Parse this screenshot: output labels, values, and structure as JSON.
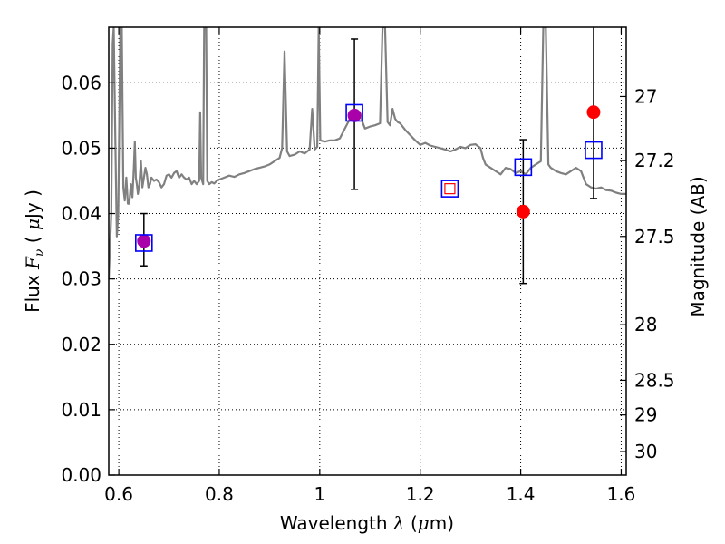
{
  "chart_data": {
    "type": "scatter",
    "title": "",
    "xlabel": {
      "prefix": "Wavelength",
      "symbol": "λ",
      "unit_open": "(",
      "unit_mu": "μ",
      "unit_rest": "m)"
    },
    "ylabel": {
      "prefix": "Flux",
      "symbol": "F",
      "subscript": "ν",
      "unit_open": "(",
      "unit_mu": "μ",
      "unit_rest": "Jy )"
    },
    "y2label": "Magnitude (AB)",
    "xlim": [
      0.58,
      1.61
    ],
    "ylim": [
      0.0,
      0.0685
    ],
    "grid": true,
    "x_ticks": [
      {
        "value": 0.6,
        "label": "0.6"
      },
      {
        "value": 0.8,
        "label": "0.8"
      },
      {
        "value": 1.0,
        "label": "1"
      },
      {
        "value": 1.2,
        "label": "1.2"
      },
      {
        "value": 1.4,
        "label": "1.4"
      },
      {
        "value": 1.6,
        "label": "1.6"
      }
    ],
    "y_ticks": [
      {
        "value": 0.0,
        "label": "0.00"
      },
      {
        "value": 0.01,
        "label": "0.01"
      },
      {
        "value": 0.02,
        "label": "0.02"
      },
      {
        "value": 0.03,
        "label": "0.03"
      },
      {
        "value": 0.04,
        "label": "0.04"
      },
      {
        "value": 0.05,
        "label": "0.05"
      },
      {
        "value": 0.06,
        "label": "0.06"
      }
    ],
    "y2_ticks": [
      {
        "flux": 0.0579,
        "label": "27"
      },
      {
        "flux": 0.0481,
        "label": "27.2"
      },
      {
        "flux": 0.0365,
        "label": "27.5"
      },
      {
        "flux": 0.023,
        "label": "28"
      },
      {
        "flux": 0.0145,
        "label": "28.5"
      },
      {
        "flux": 0.0092,
        "label": "29"
      },
      {
        "flux": 0.0036,
        "label": "30"
      }
    ],
    "colors": {
      "model": "#808080",
      "observed": "#ff0000",
      "model_band": "#0000ff",
      "overlap": "#aa00aa",
      "errorbar": "#000000",
      "grid": "#000000"
    },
    "series": [
      {
        "kind": "line",
        "points": [
          [
            0.58,
            0.03
          ],
          [
            0.585,
            0.04
          ],
          [
            0.588,
            0.066
          ],
          [
            0.59,
            0.0685
          ],
          [
            0.593,
            0.052
          ],
          [
            0.596,
            0.0365
          ],
          [
            0.599,
            0.04
          ],
          [
            0.603,
            0.0685
          ],
          [
            0.606,
            0.0685
          ],
          [
            0.609,
            0.044
          ],
          [
            0.612,
            0.042
          ],
          [
            0.615,
            0.0455
          ],
          [
            0.618,
            0.0415
          ],
          [
            0.621,
            0.0415
          ],
          [
            0.624,
            0.0445
          ],
          [
            0.627,
            0.0425
          ],
          [
            0.63,
            0.047
          ],
          [
            0.632,
            0.051
          ],
          [
            0.634,
            0.0455
          ],
          [
            0.636,
            0.0445
          ],
          [
            0.638,
            0.043
          ],
          [
            0.641,
            0.0445
          ],
          [
            0.644,
            0.048
          ],
          [
            0.647,
            0.044
          ],
          [
            0.65,
            0.0455
          ],
          [
            0.653,
            0.047
          ],
          [
            0.656,
            0.046
          ],
          [
            0.659,
            0.044
          ],
          [
            0.662,
            0.0445
          ],
          [
            0.665,
            0.0455
          ],
          [
            0.67,
            0.045
          ],
          [
            0.675,
            0.0452
          ],
          [
            0.68,
            0.0448
          ],
          [
            0.685,
            0.044
          ],
          [
            0.69,
            0.0445
          ],
          [
            0.695,
            0.0458
          ],
          [
            0.7,
            0.046
          ],
          [
            0.705,
            0.0455
          ],
          [
            0.71,
            0.0462
          ],
          [
            0.715,
            0.0465
          ],
          [
            0.72,
            0.0455
          ],
          [
            0.725,
            0.046
          ],
          [
            0.73,
            0.0455
          ],
          [
            0.735,
            0.0452
          ],
          [
            0.74,
            0.0455
          ],
          [
            0.745,
            0.0445
          ],
          [
            0.75,
            0.045
          ],
          [
            0.755,
            0.0445
          ],
          [
            0.76,
            0.045
          ],
          [
            0.762,
            0.0555
          ],
          [
            0.764,
            0.0455
          ],
          [
            0.768,
            0.0445
          ],
          [
            0.77,
            0.0685
          ],
          [
            0.772,
            0.0685
          ],
          [
            0.774,
            0.0685
          ],
          [
            0.776,
            0.045
          ],
          [
            0.78,
            0.0445
          ],
          [
            0.785,
            0.0448
          ],
          [
            0.79,
            0.0446
          ],
          [
            0.795,
            0.045
          ],
          [
            0.8,
            0.0452
          ],
          [
            0.81,
            0.0455
          ],
          [
            0.82,
            0.0458
          ],
          [
            0.83,
            0.0456
          ],
          [
            0.84,
            0.046
          ],
          [
            0.85,
            0.0462
          ],
          [
            0.86,
            0.0465
          ],
          [
            0.87,
            0.0468
          ],
          [
            0.88,
            0.047
          ],
          [
            0.89,
            0.0472
          ],
          [
            0.9,
            0.0475
          ],
          [
            0.91,
            0.048
          ],
          [
            0.92,
            0.0485
          ],
          [
            0.925,
            0.05
          ],
          [
            0.93,
            0.0648
          ],
          [
            0.935,
            0.0495
          ],
          [
            0.94,
            0.0488
          ],
          [
            0.95,
            0.049
          ],
          [
            0.96,
            0.0495
          ],
          [
            0.97,
            0.0492
          ],
          [
            0.98,
            0.0498
          ],
          [
            0.985,
            0.056
          ],
          [
            0.99,
            0.0498
          ],
          [
            0.995,
            0.0502
          ],
          [
            0.998,
            0.0685
          ],
          [
            1.001,
            0.0512
          ],
          [
            1.01,
            0.051
          ],
          [
            1.02,
            0.0512
          ],
          [
            1.03,
            0.0512
          ],
          [
            1.04,
            0.0515
          ],
          [
            1.05,
            0.053
          ],
          [
            1.06,
            0.0545
          ],
          [
            1.07,
            0.055
          ],
          [
            1.08,
            0.0555
          ],
          [
            1.085,
            0.054
          ],
          [
            1.09,
            0.053
          ],
          [
            1.1,
            0.0533
          ],
          [
            1.11,
            0.0535
          ],
          [
            1.12,
            0.0538
          ],
          [
            1.125,
            0.0685
          ],
          [
            1.13,
            0.0685
          ],
          [
            1.135,
            0.054
          ],
          [
            1.14,
            0.0535
          ],
          [
            1.145,
            0.056
          ],
          [
            1.15,
            0.0545
          ],
          [
            1.155,
            0.054
          ],
          [
            1.16,
            0.0538
          ],
          [
            1.17,
            0.0528
          ],
          [
            1.18,
            0.052
          ],
          [
            1.19,
            0.0512
          ],
          [
            1.2,
            0.0505
          ],
          [
            1.21,
            0.0508
          ],
          [
            1.22,
            0.0504
          ],
          [
            1.23,
            0.0502
          ],
          [
            1.24,
            0.05
          ],
          [
            1.25,
            0.0498
          ],
          [
            1.26,
            0.0495
          ],
          [
            1.27,
            0.0498
          ],
          [
            1.28,
            0.0502
          ],
          [
            1.29,
            0.05
          ],
          [
            1.3,
            0.0505
          ],
          [
            1.31,
            0.0506
          ],
          [
            1.32,
            0.05
          ],
          [
            1.325,
            0.0485
          ],
          [
            1.33,
            0.0475
          ],
          [
            1.34,
            0.047
          ],
          [
            1.35,
            0.0465
          ],
          [
            1.36,
            0.046
          ],
          [
            1.37,
            0.047
          ],
          [
            1.38,
            0.0468
          ],
          [
            1.39,
            0.0462
          ],
          [
            1.4,
            0.0465
          ],
          [
            1.41,
            0.046
          ],
          [
            1.42,
            0.047
          ],
          [
            1.43,
            0.0475
          ],
          [
            1.44,
            0.048
          ],
          [
            1.445,
            0.0685
          ],
          [
            1.45,
            0.0685
          ],
          [
            1.455,
            0.0475
          ],
          [
            1.46,
            0.047
          ],
          [
            1.47,
            0.0465
          ],
          [
            1.48,
            0.0462
          ],
          [
            1.49,
            0.046
          ],
          [
            1.5,
            0.0465
          ],
          [
            1.51,
            0.047
          ],
          [
            1.52,
            0.0465
          ],
          [
            1.53,
            0.0445
          ],
          [
            1.54,
            0.044
          ],
          [
            1.55,
            0.0438
          ],
          [
            1.56,
            0.044
          ],
          [
            1.57,
            0.0436
          ],
          [
            1.58,
            0.0435
          ],
          [
            1.59,
            0.0432
          ],
          [
            1.6,
            0.043
          ],
          [
            1.61,
            0.043
          ]
        ]
      },
      {
        "kind": "filled-circles",
        "points": [
          {
            "x": 0.65,
            "y": 0.0358,
            "err_low": 0.032,
            "err_high": 0.04
          },
          {
            "x": 1.069,
            "y": 0.055,
            "err_low": 0.0437,
            "err_high": 0.0667
          },
          {
            "x": 1.405,
            "y": 0.0403,
            "err_low": 0.0293,
            "err_high": 0.0513
          },
          {
            "x": 1.545,
            "y": 0.0555,
            "err_low": 0.0423,
            "err_high": 0.0685
          }
        ]
      },
      {
        "kind": "open-squares",
        "points": [
          {
            "x": 0.65,
            "y": 0.0355
          },
          {
            "x": 1.069,
            "y": 0.0554
          },
          {
            "x": 1.259,
            "y": 0.0438
          },
          {
            "x": 1.405,
            "y": 0.0471
          },
          {
            "x": 1.545,
            "y": 0.0497
          }
        ]
      },
      {
        "kind": "open-squares-inner",
        "points": [
          {
            "x": 1.259,
            "y": 0.0438
          }
        ]
      }
    ]
  }
}
